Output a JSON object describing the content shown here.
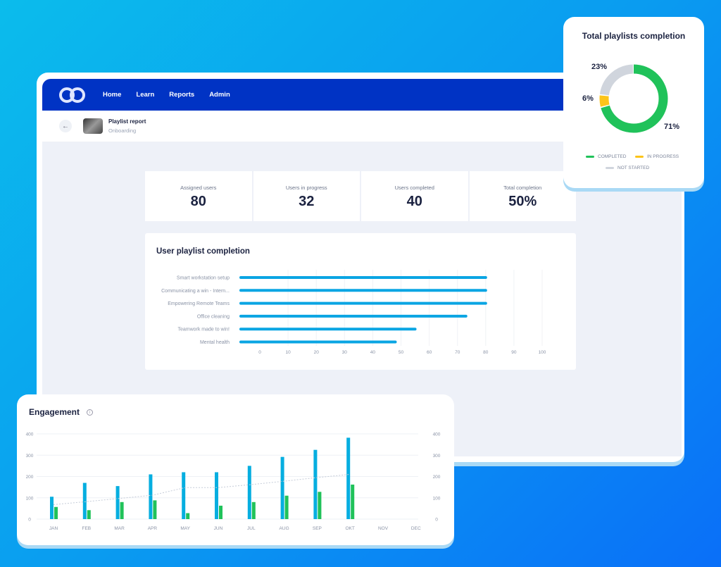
{
  "nav": {
    "items": [
      "Home",
      "Learn",
      "Reports",
      "Admin"
    ]
  },
  "header": {
    "title": "Playlist report",
    "subtitle": "Onboarding",
    "back_icon": "arrow-left-icon"
  },
  "stats": [
    {
      "label": "Assigned users",
      "value": "80"
    },
    {
      "label": "Users in progress",
      "value": "32"
    },
    {
      "label": "Users completed",
      "value": "40"
    },
    {
      "label": "Total completion",
      "value": "50%"
    }
  ],
  "chart_data": [
    {
      "type": "bar",
      "orientation": "horizontal",
      "title": "User playlist completion",
      "categories": [
        "Smart workstation setup",
        "Communicating a win - Intern...",
        "Empowering Remote Teams",
        "Office cleaning",
        "Teamwork made to win!",
        "Mental health"
      ],
      "values": [
        80,
        80,
        80,
        73,
        55,
        48
      ],
      "xlim": [
        0,
        100
      ],
      "xticks": [
        0,
        10,
        20,
        30,
        40,
        50,
        60,
        70,
        80,
        90,
        100
      ],
      "color": "#0aa5e3"
    },
    {
      "type": "bar",
      "title": "Engagement",
      "categories": [
        "JAN",
        "FEB",
        "MAR",
        "APR",
        "MAY",
        "JUN",
        "JUL",
        "AUG",
        "SEP",
        "OKT",
        "NOV",
        "DEC"
      ],
      "series": [
        {
          "name": "blue",
          "color": "#06aee0",
          "values": [
            105,
            170,
            155,
            210,
            220,
            220,
            250,
            292,
            325,
            382,
            null,
            null
          ]
        },
        {
          "name": "green",
          "color": "#20c25a",
          "values": [
            57,
            42,
            80,
            88,
            28,
            63,
            80,
            110,
            128,
            162,
            null,
            null
          ]
        },
        {
          "name": "trend",
          "type": "line",
          "style": "dotted",
          "color": "#c5ccd8",
          "values": [
            68,
            82,
            97,
            112,
            148,
            148,
            162,
            178,
            195,
            210,
            null,
            null
          ]
        }
      ],
      "ylim": [
        0,
        400
      ],
      "yticks": [
        0,
        100,
        200,
        300,
        400
      ],
      "grid": true
    },
    {
      "type": "pie",
      "title": "Total playlists completion",
      "labels": [
        "COMPLETED",
        "IN PROGRESS",
        "NOT STARTED"
      ],
      "values": [
        71,
        6,
        23
      ],
      "value_labels": [
        "71%",
        "6%",
        "23%"
      ],
      "colors": [
        "#20c25a",
        "#fcc419",
        "#d0d5dd"
      ],
      "legend": "bottom"
    }
  ]
}
